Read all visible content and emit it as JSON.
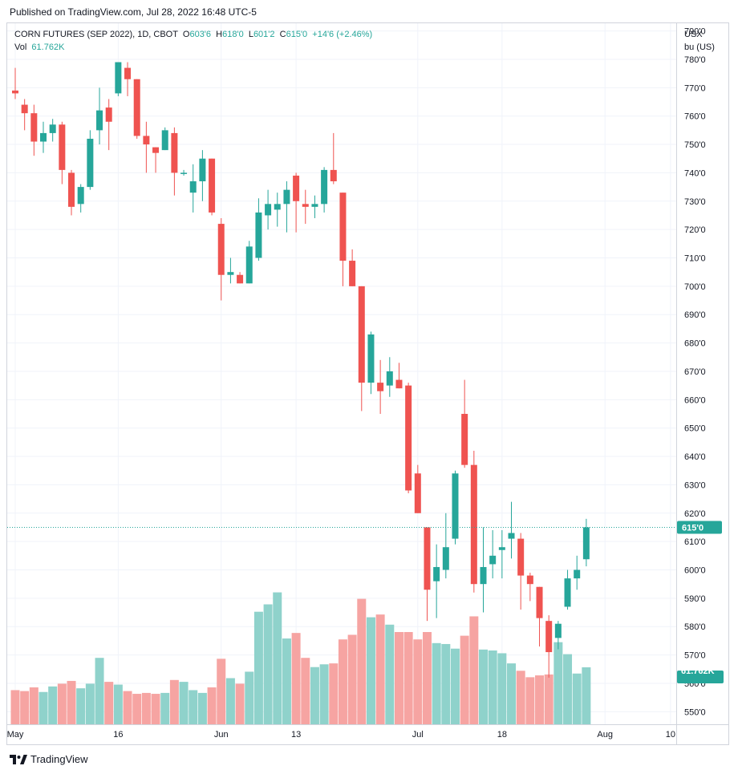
{
  "header": {
    "published": "Published on TradingView.com, Jul 28, 2022 16:48 UTC-5"
  },
  "legend": {
    "symbol": "CORN FUTURES (SEP 2022), 1D, CBOT",
    "o_label": "O",
    "o_value": "603'6",
    "h_label": "H",
    "h_value": "618'0",
    "l_label": "L",
    "l_value": "601'2",
    "c_label": "C",
    "c_value": "615'0",
    "change": "+14'6 (+2.46%)",
    "vol_label": "Vol",
    "vol_value": "61.762K"
  },
  "price_axis": {
    "currency": "USX",
    "unit": "bu (US)",
    "last_price_label": "615'0",
    "last_volume_label": "61.762K"
  },
  "footer": {
    "brand": "TradingView",
    "logo_icon": "tradingview-logo-icon"
  },
  "colors": {
    "up": "#26a69a",
    "down": "#ef5350",
    "up_volume": "#8fd2cb",
    "down_volume": "#f6a4a2",
    "grid": "#f0f3fa",
    "text": "#131722"
  },
  "chart_data": {
    "type": "candlestick",
    "title": "CORN FUTURES (SEP 2022), 1D, CBOT",
    "units": "USX/bu (US)",
    "price_ticks": [
      "790'0",
      "780'0",
      "770'0",
      "760'0",
      "750'0",
      "740'0",
      "730'0",
      "720'0",
      "710'0",
      "700'0",
      "690'0",
      "680'0",
      "670'0",
      "660'0",
      "650'0",
      "640'0",
      "630'0",
      "620'0",
      "610'0",
      "600'0",
      "590'0",
      "580'0",
      "570'0",
      "560'0",
      "550'0"
    ],
    "price_tick_values": [
      790,
      780,
      770,
      760,
      750,
      740,
      730,
      720,
      710,
      700,
      690,
      680,
      670,
      660,
      650,
      640,
      630,
      620,
      610,
      600,
      590,
      580,
      570,
      560,
      550
    ],
    "y_range": [
      545,
      793
    ],
    "x_ticks": [
      {
        "label": "May",
        "index": 0
      },
      {
        "label": "16",
        "index": 11
      },
      {
        "label": "Jun",
        "index": 22
      },
      {
        "label": "13",
        "index": 30
      },
      {
        "label": "Jul",
        "index": 43
      },
      {
        "label": "18",
        "index": 52
      },
      {
        "label": "Aug",
        "index": 63
      },
      {
        "label": "10",
        "index": 70
      }
    ],
    "grid": true,
    "volume_max": 100,
    "candles": [
      {
        "date": "2022-04-29",
        "o": 769,
        "h": 777,
        "l": 766,
        "c": 768,
        "v": 37
      },
      {
        "date": "2022-05-02",
        "o": 764,
        "h": 766,
        "l": 755,
        "c": 761,
        "v": 36
      },
      {
        "date": "2022-05-03",
        "o": 761,
        "h": 764,
        "l": 746,
        "c": 751,
        "v": 40
      },
      {
        "date": "2022-05-04",
        "o": 751,
        "h": 758,
        "l": 747,
        "c": 754,
        "v": 35
      },
      {
        "date": "2022-05-05",
        "o": 754,
        "h": 759,
        "l": 751,
        "c": 757,
        "v": 41
      },
      {
        "date": "2022-05-06",
        "o": 757,
        "h": 758,
        "l": 736,
        "c": 741,
        "v": 44
      },
      {
        "date": "2022-05-09",
        "o": 740,
        "h": 741,
        "l": 725,
        "c": 728,
        "v": 47
      },
      {
        "date": "2022-05-10",
        "o": 729,
        "h": 736,
        "l": 726,
        "c": 735,
        "v": 39
      },
      {
        "date": "2022-05-11",
        "o": 735,
        "h": 755,
        "l": 734,
        "c": 752,
        "v": 44
      },
      {
        "date": "2022-05-12",
        "o": 755,
        "h": 770,
        "l": 750,
        "c": 762,
        "v": 72
      },
      {
        "date": "2022-05-13",
        "o": 763,
        "h": 766,
        "l": 748,
        "c": 758,
        "v": 46
      },
      {
        "date": "2022-05-16",
        "o": 768,
        "h": 779,
        "l": 767,
        "c": 779,
        "v": 43
      },
      {
        "date": "2022-05-17",
        "o": 777,
        "h": 779,
        "l": 767,
        "c": 773,
        "v": 36
      },
      {
        "date": "2022-05-18",
        "o": 773,
        "h": 773,
        "l": 752,
        "c": 753,
        "v": 33
      },
      {
        "date": "2022-05-19",
        "o": 753,
        "h": 758,
        "l": 740,
        "c": 750,
        "v": 34
      },
      {
        "date": "2022-05-20",
        "o": 749,
        "h": 749,
        "l": 740,
        "c": 747,
        "v": 33
      },
      {
        "date": "2022-05-23",
        "o": 748,
        "h": 756,
        "l": 748,
        "c": 755,
        "v": 34
      },
      {
        "date": "2022-05-24",
        "o": 754,
        "h": 756,
        "l": 732,
        "c": 740,
        "v": 48
      },
      {
        "date": "2022-05-25",
        "o": 740,
        "h": 741,
        "l": 739,
        "c": 740,
        "v": 46
      },
      {
        "date": "2022-05-26",
        "o": 733,
        "h": 743,
        "l": 726,
        "c": 737,
        "v": 37
      },
      {
        "date": "2022-05-27",
        "o": 737,
        "h": 748,
        "l": 730,
        "c": 745,
        "v": 34
      },
      {
        "date": "2022-05-31",
        "o": 745,
        "h": 745,
        "l": 725,
        "c": 726,
        "v": 40
      },
      {
        "date": "2022-06-01",
        "o": 722,
        "h": 724,
        "l": 695,
        "c": 704,
        "v": 71
      },
      {
        "date": "2022-06-02",
        "o": 704,
        "h": 710,
        "l": 701,
        "c": 705,
        "v": 50
      },
      {
        "date": "2022-06-03",
        "o": 704,
        "h": 705,
        "l": 701,
        "c": 701,
        "v": 44
      },
      {
        "date": "2022-06-06",
        "o": 701,
        "h": 716,
        "l": 701,
        "c": 714,
        "v": 57
      },
      {
        "date": "2022-06-07",
        "o": 710,
        "h": 731,
        "l": 709,
        "c": 726,
        "v": 122
      },
      {
        "date": "2022-06-08",
        "o": 725,
        "h": 734,
        "l": 720,
        "c": 729,
        "v": 130
      },
      {
        "date": "2022-06-09",
        "o": 727,
        "h": 733,
        "l": 721,
        "c": 729,
        "v": 143
      },
      {
        "date": "2022-06-10",
        "o": 729,
        "h": 737,
        "l": 719,
        "c": 734,
        "v": 93
      },
      {
        "date": "2022-06-13",
        "o": 739,
        "h": 740,
        "l": 719,
        "c": 730,
        "v": 99
      },
      {
        "date": "2022-06-14",
        "o": 729,
        "h": 734,
        "l": 722,
        "c": 728,
        "v": 72
      },
      {
        "date": "2022-06-15",
        "o": 728,
        "h": 732,
        "l": 724,
        "c": 729,
        "v": 62
      },
      {
        "date": "2022-06-16",
        "o": 729,
        "h": 742,
        "l": 726,
        "c": 741,
        "v": 65
      },
      {
        "date": "2022-06-17",
        "o": 741,
        "h": 754,
        "l": 736,
        "c": 737,
        "v": 66
      },
      {
        "date": "2022-06-21",
        "o": 733,
        "h": 733,
        "l": 700,
        "c": 709,
        "v": 92
      },
      {
        "date": "2022-06-22",
        "o": 709,
        "h": 713,
        "l": 700,
        "c": 700,
        "v": 97
      },
      {
        "date": "2022-06-23",
        "o": 700,
        "h": 700,
        "l": 656,
        "c": 666,
        "v": 136
      },
      {
        "date": "2022-06-24",
        "o": 666,
        "h": 684,
        "l": 662,
        "c": 683,
        "v": 116
      },
      {
        "date": "2022-06-27",
        "o": 666,
        "h": 674,
        "l": 655,
        "c": 663,
        "v": 119
      },
      {
        "date": "2022-06-28",
        "o": 665,
        "h": 675,
        "l": 661,
        "c": 670,
        "v": 108
      },
      {
        "date": "2022-06-29",
        "o": 667,
        "h": 673,
        "l": 664,
        "c": 664,
        "v": 100
      },
      {
        "date": "2022-06-30",
        "o": 665,
        "h": 666,
        "l": 627,
        "c": 628,
        "v": 100
      },
      {
        "date": "2022-07-01",
        "o": 634,
        "h": 637,
        "l": 620,
        "c": 620,
        "v": 92
      },
      {
        "date": "2022-07-05",
        "o": 615,
        "h": 615,
        "l": 582,
        "c": 593,
        "v": 100
      },
      {
        "date": "2022-07-06",
        "o": 596,
        "h": 609,
        "l": 583,
        "c": 601,
        "v": 88
      },
      {
        "date": "2022-07-07",
        "o": 600,
        "h": 620,
        "l": 597,
        "c": 608,
        "v": 87
      },
      {
        "date": "2022-07-08",
        "o": 611,
        "h": 635,
        "l": 609,
        "c": 634,
        "v": 82
      },
      {
        "date": "2022-07-11",
        "o": 655,
        "h": 667,
        "l": 636,
        "c": 637,
        "v": 96
      },
      {
        "date": "2022-07-12",
        "o": 637,
        "h": 642,
        "l": 592,
        "c": 595,
        "v": 117
      },
      {
        "date": "2022-07-13",
        "o": 595,
        "h": 615,
        "l": 585,
        "c": 601,
        "v": 81
      },
      {
        "date": "2022-07-14",
        "o": 602,
        "h": 614,
        "l": 597,
        "c": 605,
        "v": 80
      },
      {
        "date": "2022-07-15",
        "o": 607,
        "h": 614,
        "l": 597,
        "c": 608,
        "v": 77
      },
      {
        "date": "2022-07-18",
        "o": 611,
        "h": 624,
        "l": 604,
        "c": 613,
        "v": 66
      },
      {
        "date": "2022-07-19",
        "o": 611,
        "h": 613,
        "l": 586,
        "c": 598,
        "v": 58
      },
      {
        "date": "2022-07-20",
        "o": 598,
        "h": 599,
        "l": 589,
        "c": 595,
        "v": 51
      },
      {
        "date": "2022-07-21",
        "o": 594,
        "h": 594,
        "l": 573,
        "c": 583,
        "v": 53
      },
      {
        "date": "2022-07-22",
        "o": 582,
        "h": 584,
        "l": 562,
        "c": 571,
        "v": 54
      },
      {
        "date": "2022-07-25",
        "o": 576,
        "h": 582,
        "l": 572,
        "c": 581,
        "v": 89
      },
      {
        "date": "2022-07-26",
        "o": 587,
        "h": 600,
        "l": 586,
        "c": 597,
        "v": 76
      },
      {
        "date": "2022-07-27",
        "o": 597,
        "h": 605,
        "l": 593,
        "c": 600,
        "v": 55
      },
      {
        "date": "2022-07-28",
        "o": 603.75,
        "h": 618,
        "l": 601.25,
        "c": 615,
        "v": 61.762
      }
    ]
  }
}
